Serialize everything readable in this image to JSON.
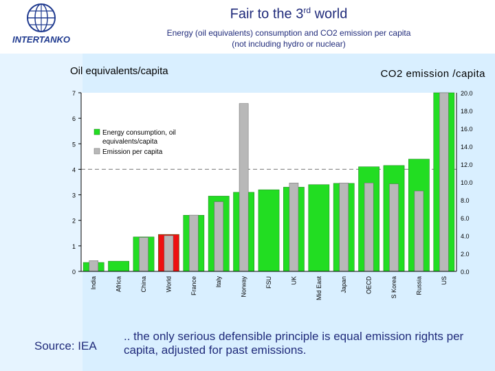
{
  "header": {
    "title": "Fair to the 3",
    "title_sup": "rd",
    "title_tail": " world",
    "subtitle_line1": "Energy  (oil equivalents) consumption and CO2 emission per capita",
    "subtitle_line2": "(not including hydro or nuclear)"
  },
  "logo": {
    "text": "INTERTANKO"
  },
  "footer": {
    "source": "Source: IEA",
    "note": ".. the only serious defensible principle is equal emission rights per capita, adjusted for past emissions."
  },
  "colors": {
    "green": "#22dd22",
    "grey": "#b8b8b8",
    "red": "#ee1111",
    "navy": "#1f2a7a",
    "panel": "#d9efff"
  },
  "chart_data": {
    "type": "bar",
    "ylabel": "Oil equivalents/capita",
    "y2label": "CO2 emission /capita",
    "ylim": [
      0,
      7
    ],
    "y2lim": [
      0,
      20
    ],
    "yticks": [
      "0",
      "1",
      "2",
      "3",
      "4",
      "5",
      "6",
      "7"
    ],
    "y2ticks": [
      "0.0",
      "2.0",
      "4.0",
      "6.0",
      "8.0",
      "10.0",
      "12.0",
      "14.0",
      "16.0",
      "18.0",
      "20.0"
    ],
    "reference_line": 4,
    "categories": [
      "India",
      "Africa",
      "China",
      "World",
      "France",
      "Italy",
      "Norway",
      "FSU",
      "UK",
      "Mid East",
      "Japan",
      "OECD",
      "S Korea",
      "Russia",
      "US"
    ],
    "highlight": "World",
    "series": [
      {
        "name": "Energy consumption, oil equivalents/capita",
        "axis": "left",
        "values": [
          0.35,
          0.4,
          1.35,
          1.45,
          2.2,
          2.95,
          3.1,
          3.2,
          3.3,
          3.4,
          3.45,
          4.1,
          4.15,
          4.4,
          7.0
        ]
      },
      {
        "name": "Emission per capita",
        "axis": "right",
        "values": [
          1.2,
          0.0,
          3.8,
          4.0,
          6.3,
          7.8,
          18.8,
          0.0,
          9.9,
          0.0,
          9.9,
          9.9,
          9.8,
          9.0,
          20.0
        ]
      }
    ],
    "legend": [
      {
        "label": "Energy consumption, oil",
        "label2": "equivalents/capita"
      },
      {
        "label": "Emission per capita"
      }
    ],
    "legend_position": "top-left"
  }
}
